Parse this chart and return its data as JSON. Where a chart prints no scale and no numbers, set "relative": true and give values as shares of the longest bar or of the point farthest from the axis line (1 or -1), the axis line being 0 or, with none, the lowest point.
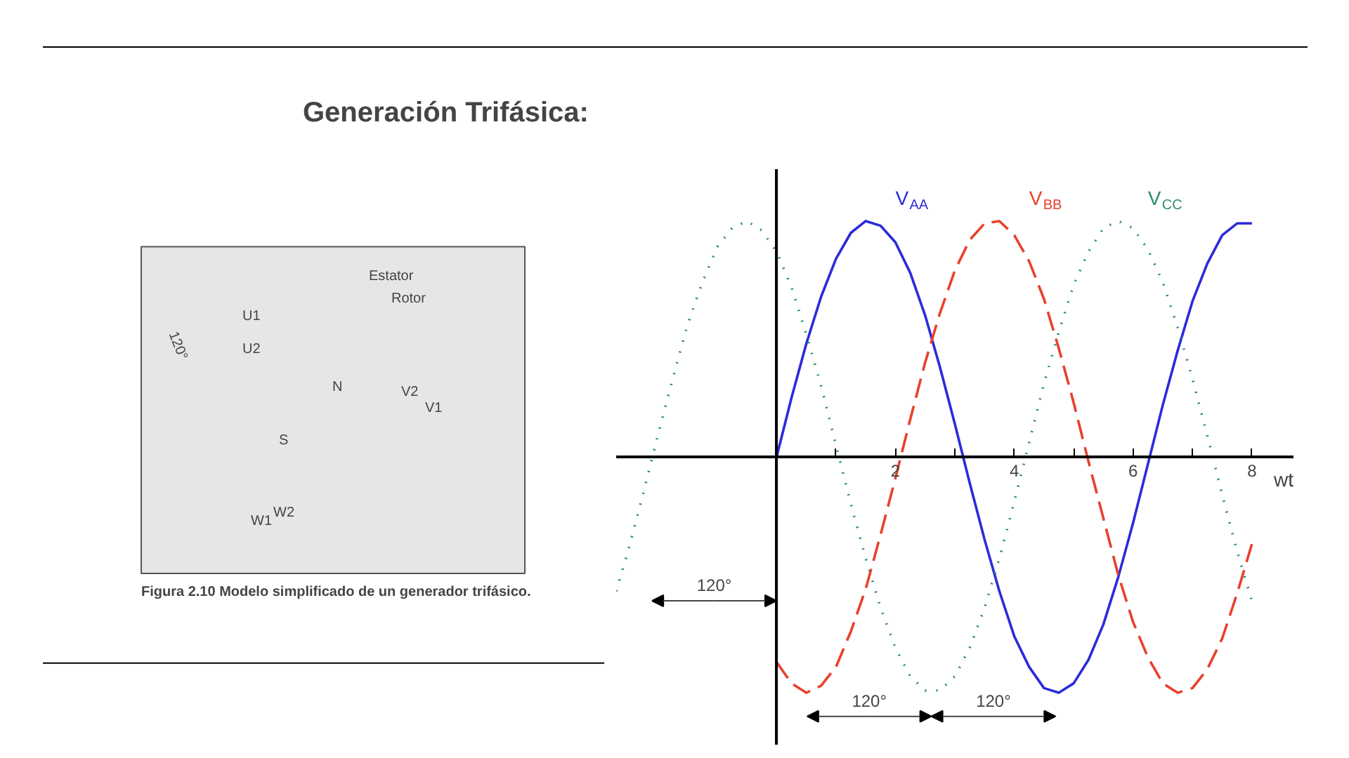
{
  "chart_data": {
    "type": "line",
    "title": "Generación Trifásica:",
    "xlabel": "wt",
    "relative": true,
    "xlim": [
      -2.7,
      8.7
    ],
    "xticks": [
      {
        "value": 1,
        "label": null
      },
      2,
      {
        "value": 3,
        "label": null
      },
      4,
      {
        "value": 5,
        "label": null
      },
      6,
      {
        "value": 7,
        "label": null
      },
      8
    ],
    "grid": false,
    "series": [
      {
        "name": "V$_{AA}$",
        "color": "#2b2bd9",
        "line_style": "solid",
        "x": [
          0,
          0.25,
          0.5,
          0.75,
          1,
          1.25,
          1.5,
          1.75,
          2,
          2.25,
          2.5,
          2.75,
          3,
          3.25,
          3.5,
          3.75,
          4,
          4.25,
          4.5,
          4.75,
          5,
          5.25,
          5.5,
          5.75,
          6,
          6.25,
          6.5,
          6.75,
          7,
          7.25,
          7.5,
          7.75,
          8
        ],
        "values": [
          0,
          0.25,
          0.48,
          0.68,
          0.84,
          0.95,
          1.0,
          0.98,
          0.91,
          0.78,
          0.6,
          0.38,
          0.14,
          -0.11,
          -0.35,
          -0.57,
          -0.76,
          -0.89,
          -0.98,
          -1.0,
          -0.96,
          -0.86,
          -0.71,
          -0.51,
          -0.28,
          -0.03,
          0.22,
          0.45,
          0.66,
          0.82,
          0.94,
          0.99,
          0.99
        ]
      },
      {
        "name": "V$_{BB}$",
        "color": "#e8412c",
        "line_style": "dashed",
        "x": [
          0,
          0.25,
          0.5,
          0.75,
          1,
          1.25,
          1.5,
          1.75,
          2,
          2.25,
          2.5,
          2.75,
          3,
          3.25,
          3.5,
          3.75,
          4,
          4.25,
          4.5,
          4.75,
          5,
          5.25,
          5.5,
          5.75,
          6,
          6.25,
          6.5,
          6.75,
          7,
          7.25,
          7.5,
          7.75,
          8
        ],
        "values": [
          -0.87,
          -0.96,
          -1.0,
          -0.97,
          -0.89,
          -0.74,
          -0.56,
          -0.33,
          -0.09,
          0.16,
          0.4,
          0.61,
          0.79,
          0.92,
          0.99,
          1.0,
          0.94,
          0.83,
          0.67,
          0.46,
          0.23,
          -0.02,
          -0.26,
          -0.5,
          -0.7,
          -0.85,
          -0.96,
          -1.0,
          -0.98,
          -0.9,
          -0.77,
          -0.58,
          -0.37
        ]
      },
      {
        "name": "V$_{CC}$",
        "color": "#2e8b6e",
        "line_style": "dotted",
        "x": [
          -2.7,
          -2.5,
          -2.25,
          -2,
          -1.75,
          -1.5,
          -1.25,
          -1,
          -0.75,
          -0.5,
          -0.25,
          0,
          0.25,
          0.5,
          0.75,
          1,
          1.25,
          1.5,
          1.75,
          2,
          2.25,
          2.5,
          2.75,
          3,
          3.25,
          3.5,
          3.75,
          4,
          4.25,
          4.5,
          4.75,
          5,
          5.25,
          5.5,
          5.75,
          6,
          6.25,
          6.5,
          6.75,
          7,
          7.25,
          7.5,
          7.75,
          8
        ],
        "values": [
          -0.57,
          -0.4,
          -0.16,
          0.09,
          0.33,
          0.56,
          0.74,
          0.89,
          0.97,
          1.0,
          0.96,
          0.87,
          0.72,
          0.52,
          0.3,
          0.05,
          -0.2,
          -0.43,
          -0.64,
          -0.81,
          -0.93,
          -0.99,
          -0.99,
          -0.93,
          -0.81,
          -0.64,
          -0.43,
          -0.19,
          0.06,
          0.31,
          0.53,
          0.73,
          0.87,
          0.97,
          1.0,
          0.97,
          0.88,
          0.74,
          0.55,
          0.33,
          0.09,
          -0.16,
          -0.4,
          -0.61
        ]
      }
    ],
    "annotations": [
      "120°",
      "120°",
      "120°",
      "Estator",
      "Rotor",
      "U1",
      "U2",
      "N",
      "S",
      "V2",
      "V1",
      "W1",
      "W2",
      "120°",
      "Figura 2.10  Modelo simplificado de un generador trifásico."
    ]
  }
}
